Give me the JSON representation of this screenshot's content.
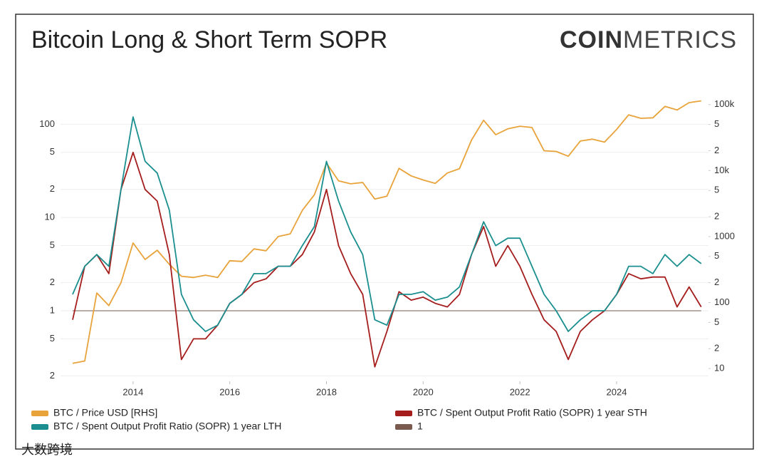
{
  "chart_data": {
    "type": "line",
    "title": "Bitcoin Long & Short Term SOPR",
    "logo": {
      "bold": "COIN",
      "light": "METRICS"
    },
    "watermark": "大数跨境",
    "log_scale": true,
    "grid": true,
    "xlim": [
      2012.5,
      2025.9
    ],
    "xticks": [
      2014,
      2016,
      2018,
      2020,
      2022,
      2024
    ],
    "ylim": [
      0.175,
      200
    ],
    "yticks": [
      {
        "value": 100,
        "label": "100"
      },
      {
        "value": 50,
        "label": "5"
      },
      {
        "value": 20,
        "label": "2"
      },
      10,
      5,
      2,
      1,
      {
        "value": 0.5,
        "label": "5"
      },
      {
        "value": 0.2,
        "label": "2"
      }
    ],
    "y2lim": [
      6.4,
      134000
    ],
    "y2ticks": [
      {
        "value": 100000,
        "label": "100k"
      },
      {
        "value": 50000,
        "label": "5"
      },
      {
        "value": 20000,
        "label": "2"
      },
      {
        "value": 10000,
        "label": "10k"
      },
      {
        "value": 5000,
        "label": "5"
      },
      {
        "value": 2000,
        "label": "2"
      },
      1000,
      {
        "value": 500,
        "label": "5"
      },
      {
        "value": 200,
        "label": "2"
      },
      100,
      {
        "value": 50,
        "label": "5"
      },
      {
        "value": 20,
        "label": "2"
      },
      10
    ],
    "x": [
      2012.75,
      2013.0,
      2013.25,
      2013.5,
      2013.75,
      2014.0,
      2014.25,
      2014.5,
      2014.75,
      2015.0,
      2015.25,
      2015.5,
      2015.75,
      2016.0,
      2016.25,
      2016.5,
      2016.75,
      2017.0,
      2017.25,
      2017.5,
      2017.75,
      2018.0,
      2018.25,
      2018.5,
      2018.75,
      2019.0,
      2019.25,
      2019.5,
      2019.75,
      2020.0,
      2020.25,
      2020.5,
      2020.75,
      2021.0,
      2021.25,
      2021.5,
      2021.75,
      2022.0,
      2022.25,
      2022.5,
      2022.75,
      2023.0,
      2023.25,
      2023.5,
      2023.75,
      2024.0,
      2024.25,
      2024.5,
      2024.75,
      2025.0,
      2025.25,
      2025.5,
      2025.75
    ],
    "series": [
      {
        "name": "BTC / Price USD [RHS]",
        "color": "#e8a33a",
        "axis": "y2",
        "values": [
          12,
          13,
          140,
          90,
          200,
          800,
          450,
          620,
          380,
          250,
          240,
          260,
          240,
          430,
          420,
          650,
          610,
          1000,
          1100,
          2500,
          4300,
          13000,
          7000,
          6300,
          6600,
          3700,
          4100,
          10800,
          8300,
          7200,
          6400,
          9200,
          10700,
          29000,
          58000,
          35000,
          43000,
          47000,
          45000,
          20000,
          19500,
          16500,
          28000,
          30000,
          27000,
          42000,
          70000,
          62000,
          63000,
          94000,
          83000,
          107000,
          114000
        ]
      },
      {
        "name": "BTC / Spent Output Profit Ratio (SOPR) 1 year STH",
        "color": "#a51d1d",
        "values": [
          0.8,
          3,
          4,
          2.5,
          20,
          50,
          20,
          15,
          4,
          0.3,
          0.5,
          0.5,
          0.7,
          1.2,
          1.5,
          2,
          2.2,
          3,
          3,
          4,
          7,
          20,
          5,
          2.5,
          1.5,
          0.25,
          0.6,
          1.6,
          1.3,
          1.4,
          1.2,
          1.1,
          1.5,
          4,
          8,
          3,
          5,
          3,
          1.5,
          0.8,
          0.6,
          0.3,
          0.6,
          0.8,
          1.0,
          1.5,
          2.5,
          2.2,
          2.3,
          2.3,
          1.1,
          1.8,
          1.1
        ]
      },
      {
        "name": "BTC / Spent Output Profit Ratio (SOPR) 1 year LTH",
        "color": "#1b8f8f",
        "values": [
          1.5,
          3,
          4,
          3,
          20,
          120,
          40,
          30,
          12,
          1.5,
          0.8,
          0.6,
          0.7,
          1.2,
          1.5,
          2.5,
          2.5,
          3,
          3,
          5,
          8,
          40,
          15,
          7,
          4,
          0.8,
          0.7,
          1.5,
          1.5,
          1.6,
          1.3,
          1.4,
          1.8,
          4,
          9,
          5,
          6,
          6,
          3,
          1.5,
          1.0,
          0.6,
          0.8,
          1.0,
          1.0,
          1.5,
          3,
          3,
          2.5,
          4,
          3,
          4,
          3.2
        ]
      },
      {
        "name": "1",
        "color": "#7a5a4e",
        "values": [
          1,
          1,
          1,
          1,
          1,
          1,
          1,
          1,
          1,
          1,
          1,
          1,
          1,
          1,
          1,
          1,
          1,
          1,
          1,
          1,
          1,
          1,
          1,
          1,
          1,
          1,
          1,
          1,
          1,
          1,
          1,
          1,
          1,
          1,
          1,
          1,
          1,
          1,
          1,
          1,
          1,
          1,
          1,
          1,
          1,
          1,
          1,
          1,
          1,
          1,
          1,
          1,
          1
        ]
      }
    ]
  }
}
